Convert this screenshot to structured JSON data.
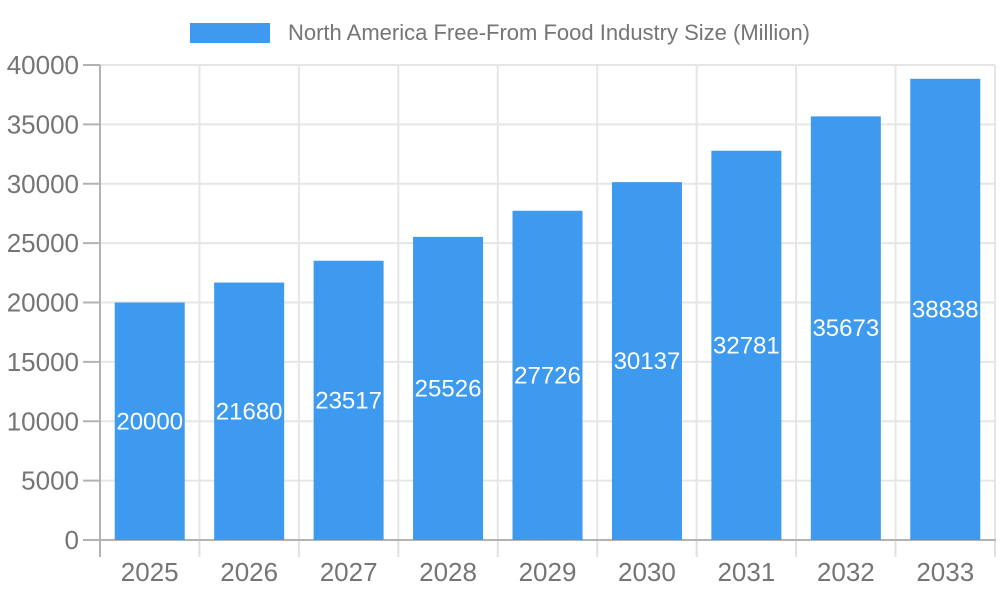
{
  "chart_data": {
    "type": "bar",
    "title": "North America Free-From Food Industry Size (Million)",
    "categories": [
      "2025",
      "2026",
      "2027",
      "2028",
      "2029",
      "2030",
      "2031",
      "2032",
      "2033"
    ],
    "values": [
      20000,
      21680,
      23517,
      25526,
      27726,
      30137,
      32781,
      35673,
      38838
    ],
    "xlabel": "",
    "ylabel": "",
    "ylim": [
      0,
      40000
    ],
    "ytick_step": 5000,
    "grid": true,
    "legend_position": "top",
    "value_labels": "inside-center",
    "bar_color": "#3E9AEE",
    "value_label_color": "#FFFFFF",
    "axis_text_color": "#757575",
    "grid_color": "#E6E6E6",
    "tick_color": "#E0E0E0",
    "axis_line_color": "#B3B3B3"
  }
}
